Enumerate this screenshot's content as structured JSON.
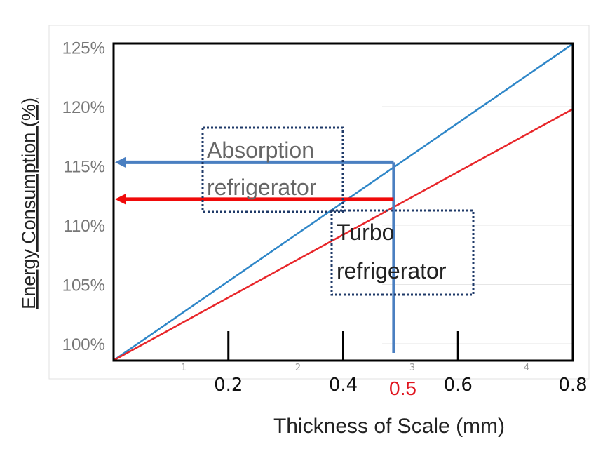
{
  "chart_data": {
    "type": "line",
    "title": "",
    "xlabel": "Thickness of Scale (mm)",
    "ylabel": "Energy Consumption (%)",
    "xlim": [
      0,
      0.8
    ],
    "ylim": [
      98.6,
      125.3
    ],
    "x_ticks": [
      "0.2",
      "0.4",
      "0.6",
      "0.8"
    ],
    "x_tick_values": [
      0.2,
      0.4,
      0.6,
      0.8
    ],
    "highlight_tick": {
      "label": "0.5",
      "value": 0.5,
      "color": "#e0141e"
    },
    "minor_labels": [
      "1",
      "2",
      "3",
      "4"
    ],
    "y_ticks": [
      "100%",
      "105%",
      "110%",
      "115%",
      "120%",
      "125%"
    ],
    "y_tick_values": [
      100,
      105,
      110,
      115,
      120,
      125
    ],
    "grid": true,
    "series": [
      {
        "name": "Absorption refrigerator",
        "color": "#2e86c8",
        "x": [
          0,
          0.8
        ],
        "y": [
          98.6,
          125.3
        ]
      },
      {
        "name": "Turbo refrigerator",
        "color": "#e8262a",
        "x": [
          0,
          0.8
        ],
        "y": [
          98.6,
          119.8
        ]
      }
    ],
    "annotations": [
      {
        "text": [
          "Absorption",
          "refrigerator"
        ],
        "color": "#666"
      },
      {
        "text": [
          "Turbo",
          "refrigerator"
        ],
        "color": "#222"
      }
    ],
    "markers": [
      {
        "type": "arrow",
        "at_x": 0.5,
        "y": 115.3,
        "color": "#4a7fc1"
      },
      {
        "type": "arrow",
        "at_x": 0.5,
        "y": 112.2,
        "color": "#f00a0a"
      }
    ]
  }
}
